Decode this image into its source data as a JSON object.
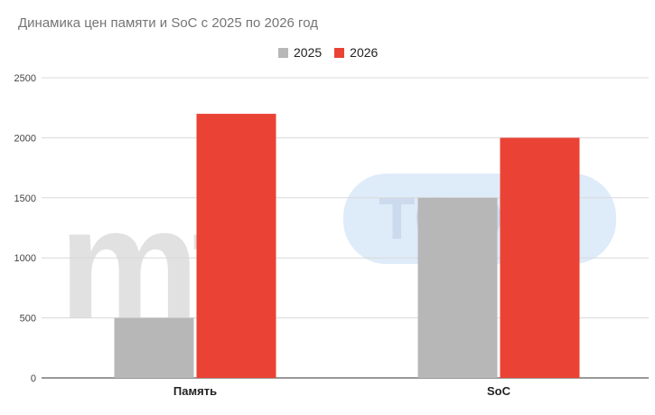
{
  "chart_data": {
    "type": "bar",
    "title": "Динамика цен памяти и SoC с 2025 по 2026 год",
    "categories": [
      "Память",
      "SoC"
    ],
    "series": [
      {
        "name": "2025",
        "values": [
          500,
          1500
        ],
        "color": "#b7b7b7"
      },
      {
        "name": "2026",
        "values": [
          2200,
          2000
        ],
        "color": "#ea4335"
      }
    ],
    "yticks": [
      "0",
      "500",
      "1000",
      "1500",
      "2000",
      "2500"
    ],
    "ylim": [
      0,
      2500
    ],
    "grid": true,
    "legend_position": "top-center"
  },
  "watermark": {
    "logo_text_left": "mt.",
    "logo_text_right": "TODAY",
    "logo_colors": {
      "left": "#d9d9d9",
      "right_badge": "#dbe9f9",
      "right_text": "#c6d6ea"
    }
  }
}
